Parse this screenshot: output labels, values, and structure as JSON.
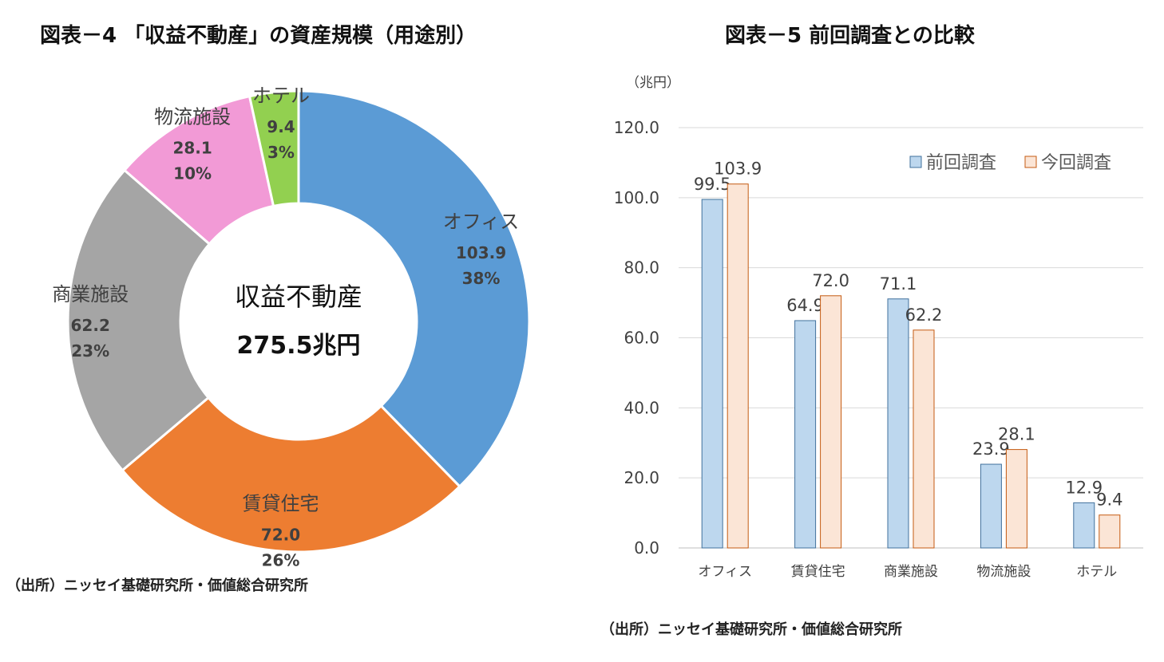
{
  "left_panel": {
    "title": "図表－4 「収益不動産」の資産規模（用途別）",
    "source": "（出所）ニッセイ基礎研究所・価値総合研究所"
  },
  "right_panel": {
    "title": "図表－5 前回調査との比較",
    "source": "（出所）ニッセイ基礎研究所・価値総合研究所"
  },
  "chart_data": [
    {
      "type": "pie",
      "style": "donut",
      "center_label": "収益不動産",
      "center_value": "275.5兆円",
      "slices": [
        {
          "label": "オフィス",
          "value": 103.9,
          "value_text": "103.9",
          "percent": "38%",
          "color": "#5B9BD5"
        },
        {
          "label": "賃貸住宅",
          "value": 72.0,
          "value_text": "72.0",
          "percent": "26%",
          "color": "#ED7D31"
        },
        {
          "label": "商業施設",
          "value": 62.2,
          "value_text": "62.2",
          "percent": "23%",
          "color": "#A5A5A5"
        },
        {
          "label": "物流施設",
          "value": 28.1,
          "value_text": "28.1",
          "percent": "10%",
          "color": "#F29AD6"
        },
        {
          "label": "ホテル",
          "value": 9.4,
          "value_text": "9.4",
          "percent": "3%",
          "color": "#92D050"
        }
      ]
    },
    {
      "type": "bar",
      "unit_label": "（兆円）",
      "categories": [
        "オフィス",
        "賃貸住宅",
        "商業施設",
        "物流施設",
        "ホテル"
      ],
      "series": [
        {
          "name": "前回調査",
          "values": [
            99.5,
            64.9,
            71.1,
            23.9,
            12.9
          ],
          "labels": [
            "99.5",
            "64.9",
            "71.1",
            "23.9",
            "12.9"
          ],
          "fill": "#BDD7EE",
          "stroke": "#41719C"
        },
        {
          "name": "今回調査",
          "values": [
            103.9,
            72.0,
            62.2,
            28.1,
            9.4
          ],
          "labels": [
            "103.9",
            "72.0",
            "62.2",
            "28.1",
            "9.4"
          ],
          "fill": "#FBE5D6",
          "stroke": "#C55A11"
        }
      ],
      "ylim": [
        0,
        120
      ],
      "yticks": [
        "0.0",
        "20.0",
        "40.0",
        "60.0",
        "80.0",
        "100.0",
        "120.0"
      ],
      "grid": true,
      "legend": "top-right"
    }
  ]
}
